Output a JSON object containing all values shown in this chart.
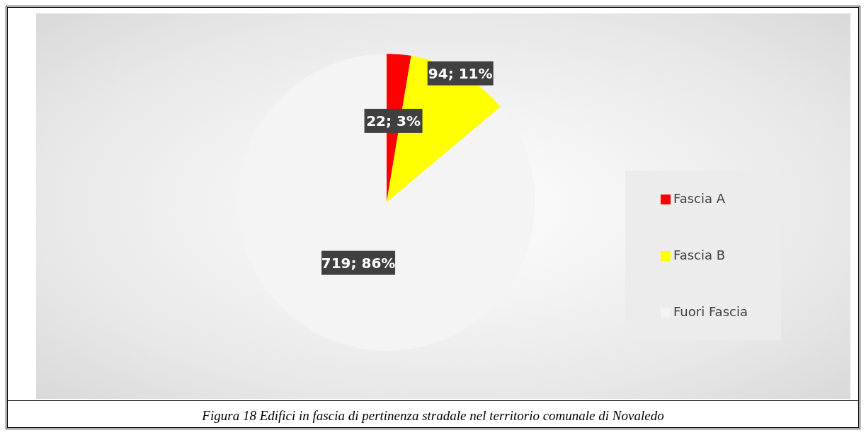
{
  "chart_data": {
    "type": "pie",
    "categories": [
      "Fascia A",
      "Fascia B",
      "Fuori Fascia"
    ],
    "values": [
      22,
      94,
      719
    ],
    "colors": [
      "#ff0000",
      "#ffff00",
      "#f4f4f4"
    ],
    "value_labels": [
      "22; 3%",
      "94; 11%",
      "719; 86%"
    ],
    "legend": "right",
    "annotations": [
      "Figura 18 Edifici in fascia di pertinenza stradale nel territorio comunale di Novaledo"
    ]
  }
}
